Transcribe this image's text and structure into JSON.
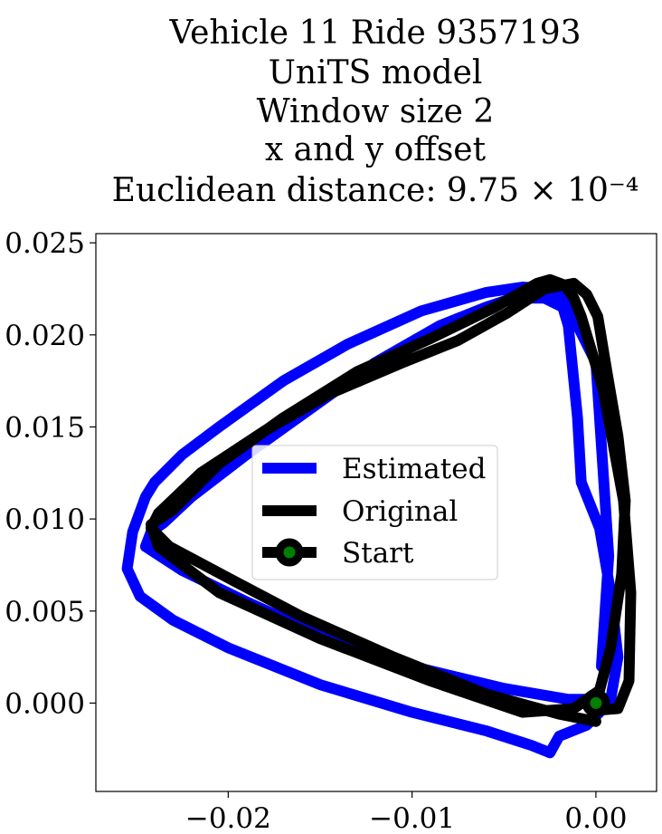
{
  "chart_data": {
    "type": "line",
    "title_lines": [
      "Vehicle 11 Ride 9357193",
      "UniTS model",
      "Window size 2",
      "x and y offset",
      "Euclidean distance: 9.75 × 10⁻⁴"
    ],
    "xlabel": "",
    "ylabel": "",
    "xlim": [
      -0.0272,
      0.0033
    ],
    "ylim": [
      -0.0048,
      0.0255
    ],
    "x_ticks": [
      -0.02,
      -0.01,
      0.0
    ],
    "x_tick_labels": [
      "−0.02",
      "−0.01",
      "0.00"
    ],
    "y_ticks": [
      0.0,
      0.005,
      0.01,
      0.015,
      0.02,
      0.025
    ],
    "y_tick_labels": [
      "0.000",
      "0.005",
      "0.010",
      "0.015",
      "0.020",
      "0.025"
    ],
    "grid": false,
    "legend_position": "center",
    "series": [
      {
        "name": "Estimated",
        "color": "#0000ff",
        "style": "line",
        "x": [
          0.0,
          -0.0015,
          -0.005,
          -0.01,
          -0.015,
          -0.019,
          -0.0225,
          -0.0245,
          -0.0242,
          -0.0235,
          -0.022,
          -0.019,
          -0.0155,
          -0.012,
          -0.0085,
          -0.006,
          -0.0045,
          -0.0028,
          -0.0018,
          -0.0015,
          -0.0013,
          -0.001,
          -0.0008,
          0.0002,
          0.0008,
          0.0012,
          0.0008,
          0.0002,
          -0.0005,
          -0.002,
          -0.0025,
          -0.0035,
          -0.006,
          -0.01,
          -0.015,
          -0.02,
          -0.023,
          -0.0248,
          -0.0255,
          -0.0252,
          -0.0245,
          -0.024,
          -0.0225,
          -0.0205,
          -0.017,
          -0.0135,
          -0.0095,
          -0.006,
          -0.004,
          -0.0025,
          -0.0015,
          -0.001,
          0.0,
          0.0007,
          0.0003
        ],
        "y": [
          0.0002,
          0.0002,
          0.0008,
          0.002,
          0.0037,
          0.0055,
          0.0072,
          0.0085,
          0.0093,
          0.0098,
          0.0112,
          0.0135,
          0.016,
          0.0185,
          0.0205,
          0.0215,
          0.022,
          0.022,
          0.0215,
          0.0205,
          0.0185,
          0.0155,
          0.012,
          0.0095,
          0.006,
          0.0025,
          0.0002,
          -0.0005,
          -0.0012,
          -0.0018,
          -0.0027,
          -0.0023,
          -0.0015,
          -0.0005,
          0.001,
          0.003,
          0.0045,
          0.0058,
          0.0073,
          0.0093,
          0.0112,
          0.012,
          0.0135,
          0.015,
          0.0175,
          0.0195,
          0.0213,
          0.0223,
          0.0226,
          0.0225,
          0.022,
          0.0205,
          0.0185,
          0.008,
          0.002
        ]
      },
      {
        "name": "Original",
        "color": "#000000",
        "style": "line",
        "x": [
          0.0,
          -0.002,
          -0.006,
          -0.011,
          -0.016,
          -0.02,
          -0.0232,
          -0.0242,
          -0.0238,
          -0.0215,
          -0.018,
          -0.0145,
          -0.0105,
          -0.0075,
          -0.0048,
          -0.0028,
          -0.0012,
          -0.0005,
          0.0001,
          0.0006,
          0.0012,
          0.0016,
          0.0014,
          0.0008,
          0.0002,
          -0.0012,
          -0.004,
          -0.009,
          -0.015,
          -0.0205,
          -0.0238,
          -0.0242,
          -0.023,
          -0.0205,
          -0.017,
          -0.013,
          -0.009,
          -0.0055,
          -0.0032,
          -0.0025,
          -0.0017,
          -0.0012,
          -0.0008,
          0.0004,
          0.0015,
          0.0019,
          0.0018,
          0.0012,
          0.0
        ],
        "y": [
          -0.001,
          -0.0006,
          0.0005,
          0.0025,
          0.0047,
          0.0068,
          0.0085,
          0.0095,
          0.0103,
          0.0125,
          0.0148,
          0.0168,
          0.0185,
          0.0197,
          0.0212,
          0.0225,
          0.0228,
          0.0222,
          0.021,
          0.018,
          0.0145,
          0.011,
          0.007,
          0.003,
          0.0007,
          -0.0003,
          -0.0005,
          0.0012,
          0.0035,
          0.006,
          0.0085,
          0.0097,
          0.0105,
          0.013,
          0.0155,
          0.018,
          0.0198,
          0.0215,
          0.0228,
          0.023,
          0.0227,
          0.022,
          0.021,
          0.017,
          0.011,
          0.006,
          0.0012,
          -0.0003,
          -0.0004
        ]
      },
      {
        "name": "Start",
        "color": "#000000",
        "marker_face": "#008000",
        "style": "marker",
        "x": [
          0.0
        ],
        "y": [
          0.0
        ]
      }
    ]
  }
}
